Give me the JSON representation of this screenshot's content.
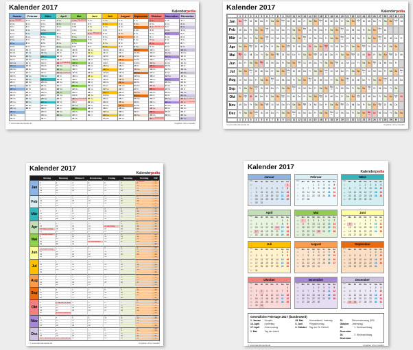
{
  "title": "Kalender 2017",
  "brand": {
    "name_black": "Kalender",
    "name_red": "pedia",
    "tagline": "Informationen und Kalender"
  },
  "footer": {
    "copyright": "© www.kalenderpedia.de",
    "disclaimer": "Angaben ohne Gewähr"
  },
  "kw_label": "KW",
  "weekdays_long": [
    "Montag",
    "Dienstag",
    "Mittwoch",
    "Donnerstag",
    "Freitag",
    "Samstag",
    "Sonntag"
  ],
  "weekdays_short": [
    "Mo",
    "Di",
    "Mi",
    "Do",
    "Fr",
    "Sa",
    "So"
  ],
  "year_start_weekday": "Sonntag",
  "months": [
    {
      "name": "Januar",
      "short": "Jan",
      "days": 31,
      "start": 6,
      "color": "#8db4e2",
      "light": "#dce6f1"
    },
    {
      "name": "Februar",
      "short": "Feb",
      "days": 28,
      "start": 2,
      "color": "#daeef3",
      "light": "#eef7fa"
    },
    {
      "name": "März",
      "short": "Mär",
      "days": 31,
      "start": 2,
      "color": "#31b6bd",
      "light": "#d2eef0"
    },
    {
      "name": "April",
      "short": "Apr",
      "days": 30,
      "start": 5,
      "color": "#c2e0b4",
      "light": "#e9f4e0"
    },
    {
      "name": "Mai",
      "short": "Mai",
      "days": 31,
      "start": 0,
      "color": "#8fd14f",
      "light": "#e2efd9"
    },
    {
      "name": "Juni",
      "short": "Jun",
      "days": 30,
      "start": 3,
      "color": "#ffff9e",
      "light": "#ffffd9"
    },
    {
      "name": "Juli",
      "short": "Jul",
      "days": 31,
      "start": 5,
      "color": "#ffc000",
      "light": "#fff2cc"
    },
    {
      "name": "August",
      "short": "Aug",
      "days": 31,
      "start": 1,
      "color": "#fb9d4b",
      "light": "#fde4cd"
    },
    {
      "name": "September",
      "short": "Sep",
      "days": 30,
      "start": 4,
      "color": "#e96b10",
      "light": "#fbdfc4"
    },
    {
      "name": "Oktober",
      "short": "Okt",
      "days": 31,
      "start": 6,
      "color": "#f47f7f",
      "light": "#fcd9d9"
    },
    {
      "name": "November",
      "short": "Nov",
      "days": 30,
      "start": 2,
      "color": "#a687d5",
      "light": "#e6ddf2"
    },
    {
      "name": "Dezember",
      "short": "Dez",
      "days": 31,
      "start": 4,
      "color": "#cdc3e0",
      "light": "#edeaf5"
    }
  ],
  "holidays": [
    {
      "month": 1,
      "day": 1,
      "name": "Neujahr"
    },
    {
      "month": 4,
      "day": 14,
      "name": "Karfreitag"
    },
    {
      "month": 4,
      "day": 17,
      "name": "Ostermontag"
    },
    {
      "month": 5,
      "day": 1,
      "name": "Tag der Arbeit"
    },
    {
      "month": 5,
      "day": 25,
      "name": "Himmelfahrt"
    },
    {
      "month": 6,
      "day": 5,
      "name": "Pfingstmontag"
    },
    {
      "month": 10,
      "day": 3,
      "name": "Tag der Dt. Einheit"
    },
    {
      "month": 10,
      "day": 31,
      "name": "Reformationstag"
    },
    {
      "month": 12,
      "day": 25,
      "name": "1. Weihnachtstag"
    },
    {
      "month": 12,
      "day": 26,
      "name": "2. Weihnachtstag"
    }
  ],
  "legend": {
    "title": "Gesetzliche Feiertage 2017 (bundesweit)",
    "columns": [
      [
        [
          "1. Januar",
          "Neujahr"
        ],
        [
          "14. April",
          "Karfreitag"
        ],
        [
          "17. April",
          "Ostermontag"
        ],
        [
          "1. Mai",
          "Tag der Arbeit"
        ]
      ],
      [
        [
          "25. Mai",
          "Himmelfahrt / Vatertag"
        ],
        [
          "5. Juni",
          "Pfingstmontag"
        ],
        [
          "3. Oktober",
          "Tag der Dt. Einheit"
        ]
      ],
      [
        [
          "31. Oktober",
          "Reformationstag (500. Jahrestag)"
        ],
        [
          "25. Dezember",
          "1. Weihnachtstag"
        ],
        [
          "26. Dezember",
          "2. Weihnachtstag"
        ]
      ]
    ]
  },
  "colors": {
    "saturday": "#edf2d8",
    "sunday": "#fbc996",
    "kw_column": "#f9b97f",
    "holiday_bg": "#f5c3c3",
    "holiday_text": "#cc0000",
    "invalid": "#d8d8d8",
    "header_black": "#1b1b1b",
    "saturday_number": "#0070c0",
    "sunday_number": "#d00000",
    "page_background": "#ededee"
  }
}
